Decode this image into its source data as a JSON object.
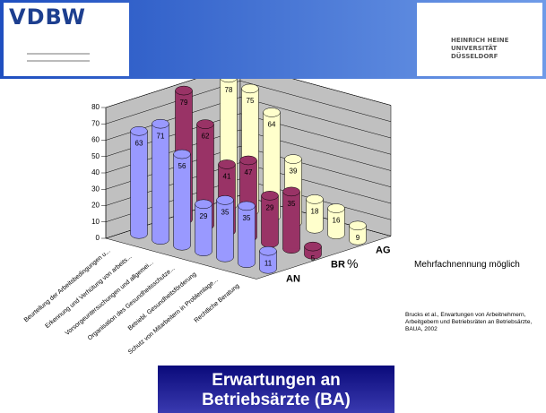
{
  "header": {
    "left_logo": "VDBW",
    "right_logo": "HEINRICH HEINE UNIVERSITÄT DÜSSELDORF"
  },
  "chart_data": {
    "type": "bar3d",
    "categories": [
      "Beurteilung der Arbeitsbedingungen u...",
      "Erkennung und Verhütung von arbeits...",
      "Vorsorgeuntersuchungen und allgemei...",
      "Organisation des Gesundheitsschutze...",
      "Betriebl. Gesundheitsförderung",
      "Schutz von Mitarbeitern in Problemlage...",
      "Rechtliche Beratung"
    ],
    "series": [
      {
        "name": "AN",
        "color": "#9999ff",
        "values": [
          63,
          71,
          56,
          29,
          35,
          35,
          11
        ]
      },
      {
        "name": "BR",
        "color": "#993366",
        "values": [
          79,
          62,
          41,
          47,
          29,
          35,
          5
        ]
      },
      {
        "name": "AG",
        "color": "#ffffcc",
        "values": [
          78,
          75,
          64,
          39,
          18,
          16,
          9
        ]
      }
    ],
    "ylim": [
      0,
      80
    ],
    "yticks": [
      0,
      10,
      20,
      30,
      40,
      50,
      60,
      70,
      80
    ],
    "grid": true,
    "y_label": "%"
  },
  "note": "Mehrfachnennung möglich",
  "source": "Brucks et al., Erwartungen von Arbeitnehmern, Arbeitgebern und Betriebsräten an Betriebsärzte, BAUA, 2002",
  "title": "Erwartungen an Betriebsärzte (BA)"
}
